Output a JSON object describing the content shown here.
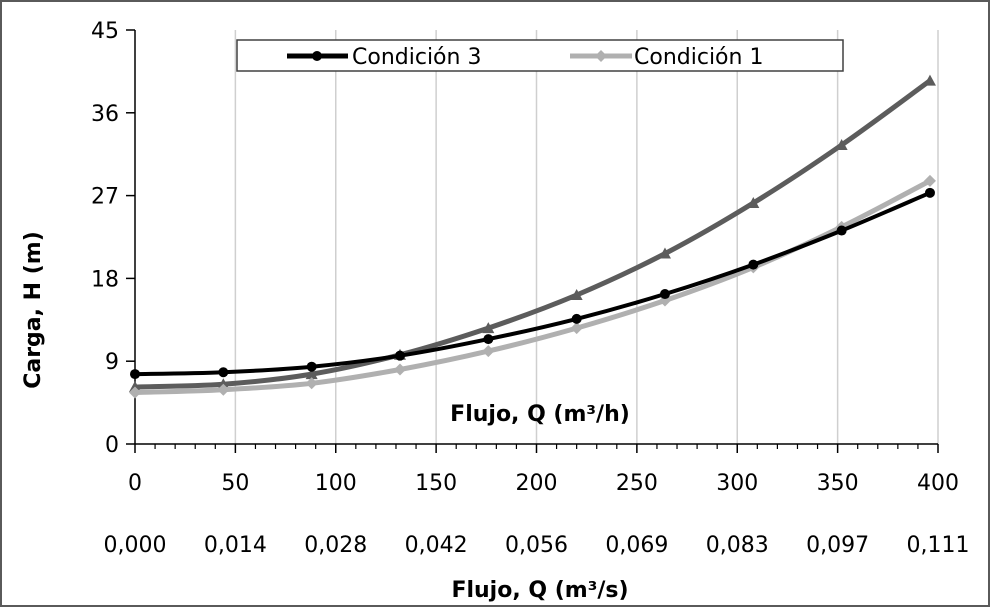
{
  "chart_data": {
    "type": "line",
    "title": "",
    "ylabel": "Carga, H (m)",
    "xlabel": "Flujo, Q (m³/h)",
    "xlabel_secondary": "Flujo, Q (m³/s)",
    "xlim": [
      0,
      400
    ],
    "ylim": [
      0,
      45
    ],
    "xticks": [
      0,
      50,
      100,
      150,
      200,
      250,
      300,
      350,
      400
    ],
    "xtick_labels": [
      "0",
      "50",
      "100",
      "150",
      "200",
      "250",
      "300",
      "350",
      "400"
    ],
    "xticks_secondary": [
      "0,000",
      "0,014",
      "0,028",
      "0,042",
      "0,056",
      "0,069",
      "0,083",
      "0,097",
      "0,111"
    ],
    "yticks": [
      0,
      9,
      18,
      27,
      36,
      45
    ],
    "ytick_labels": [
      "0",
      "9",
      "18",
      "27",
      "36",
      "45"
    ],
    "grid": "vertical",
    "legend_position": "top",
    "x": [
      0,
      44,
      88,
      132,
      176,
      220,
      264,
      308,
      352,
      396
    ],
    "series": [
      {
        "name": "Condición 3",
        "color": "#000000",
        "marker": "circle",
        "values": [
          7.6,
          7.8,
          8.4,
          9.6,
          11.4,
          13.6,
          16.3,
          19.5,
          23.2,
          27.3
        ]
      },
      {
        "name": "Condición 1",
        "color": "#b0b0b0",
        "marker": "diamond",
        "values": [
          5.6,
          5.9,
          6.6,
          8.1,
          10.1,
          12.6,
          15.6,
          19.2,
          23.6,
          28.6
        ]
      },
      {
        "name": "",
        "color": "#5c5c5c",
        "marker": "triangle",
        "values": [
          6.2,
          6.5,
          7.6,
          9.7,
          12.6,
          16.2,
          20.7,
          26.2,
          32.5,
          39.5
        ]
      }
    ]
  }
}
